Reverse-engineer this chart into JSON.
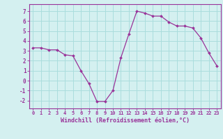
{
  "x": [
    0,
    1,
    2,
    3,
    4,
    5,
    6,
    7,
    8,
    9,
    10,
    11,
    12,
    13,
    14,
    15,
    16,
    17,
    18,
    19,
    20,
    21,
    22,
    23
  ],
  "y": [
    3.3,
    3.3,
    3.1,
    3.1,
    2.6,
    2.5,
    1.0,
    -0.3,
    -2.1,
    -2.1,
    -1.0,
    2.3,
    4.7,
    7.0,
    6.8,
    6.5,
    6.5,
    5.9,
    5.5,
    5.5,
    5.3,
    4.3,
    2.8,
    1.5
  ],
  "line_color": "#993399",
  "marker": "D",
  "marker_size": 2.0,
  "bg_color": "#d4f0f0",
  "grid_color": "#aadddd",
  "xlabel": "Windchill (Refroidissement éolien,°C)",
  "xlabel_color": "#993399",
  "ylabel_ticks": [
    -2,
    -1,
    0,
    1,
    2,
    3,
    4,
    5,
    6,
    7
  ],
  "xlim": [
    -0.5,
    23.5
  ],
  "ylim": [
    -2.8,
    7.7
  ],
  "tick_color": "#993399",
  "spine_color": "#993399"
}
